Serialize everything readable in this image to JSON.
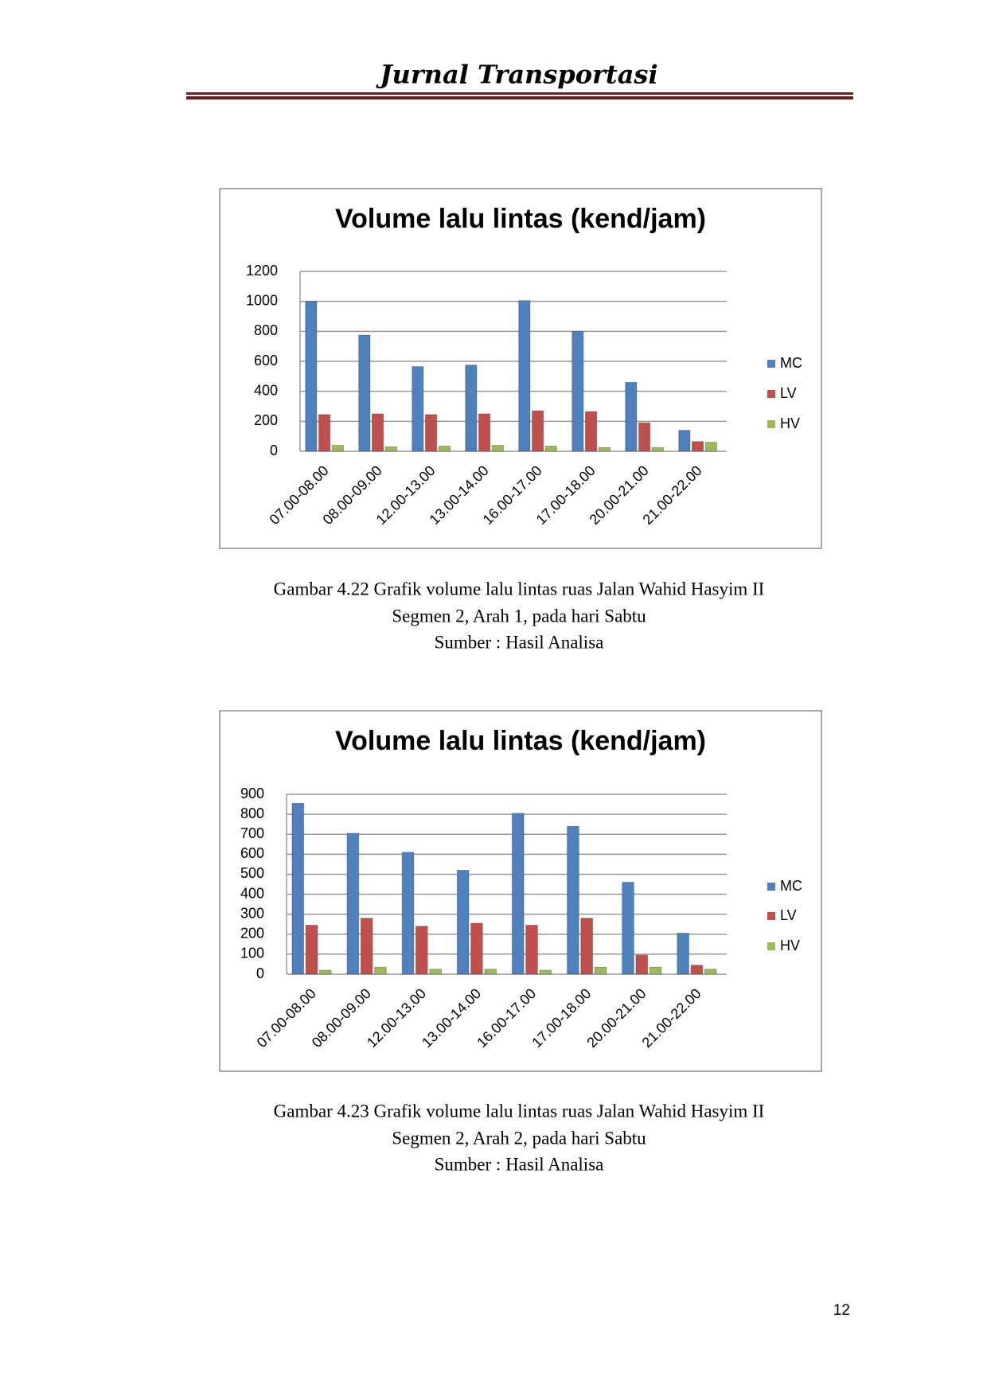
{
  "header": {
    "title": "Jurnal Transportasi"
  },
  "chart_data": [
    {
      "type": "bar",
      "title": "Volume lalu lintas (kend/jam)",
      "categories": [
        "07.00-08.00",
        "08.00-09.00",
        "12.00-13.00",
        "13.00-14.00",
        "16.00-17.00",
        "17.00-18.00",
        "20.00-21.00",
        "21.00-22.00"
      ],
      "series": [
        {
          "name": "MC",
          "color": "#4f81bd",
          "values": [
            1000,
            775,
            565,
            575,
            1005,
            800,
            460,
            140
          ]
        },
        {
          "name": "LV",
          "color": "#c0504d",
          "values": [
            245,
            250,
            245,
            250,
            270,
            265,
            190,
            65
          ]
        },
        {
          "name": "HV",
          "color": "#9bbb59",
          "values": [
            40,
            30,
            35,
            40,
            35,
            25,
            25,
            60
          ]
        }
      ],
      "ylim": [
        0,
        1200
      ],
      "yticks": [
        0,
        200,
        400,
        600,
        800,
        1000,
        1200
      ],
      "grid": true,
      "legend": "right"
    },
    {
      "type": "bar",
      "title": "Volume lalu lintas (kend/jam)",
      "categories": [
        "07.00-08.00",
        "08.00-09.00",
        "12.00-13.00",
        "13.00-14.00",
        "16.00-17.00",
        "17.00-18.00",
        "20.00-21.00",
        "21.00-22.00"
      ],
      "series": [
        {
          "name": "MC",
          "color": "#4f81bd",
          "values": [
            855,
            705,
            610,
            520,
            805,
            740,
            460,
            205
          ]
        },
        {
          "name": "LV",
          "color": "#c0504d",
          "values": [
            245,
            280,
            240,
            255,
            245,
            280,
            95,
            45
          ]
        },
        {
          "name": "HV",
          "color": "#9bbb59",
          "values": [
            20,
            35,
            25,
            25,
            20,
            35,
            35,
            25
          ]
        }
      ],
      "ylim": [
        0,
        900
      ],
      "yticks": [
        0,
        100,
        200,
        300,
        400,
        500,
        600,
        700,
        800,
        900
      ],
      "grid": true,
      "legend": "right"
    }
  ],
  "captions": [
    [
      "Gambar 4.22 Grafik volume lalu lintas ruas Jalan Wahid Hasyim II",
      "Segmen 2, Arah 1, pada hari Sabtu",
      "Sumber : Hasil Analisa"
    ],
    [
      "Gambar 4.23 Grafik volume lalu lintas ruas Jalan Wahid Hasyim II",
      "Segmen 2, Arah 2, pada hari Sabtu",
      "Sumber : Hasil Analisa"
    ]
  ],
  "page_number": "12"
}
